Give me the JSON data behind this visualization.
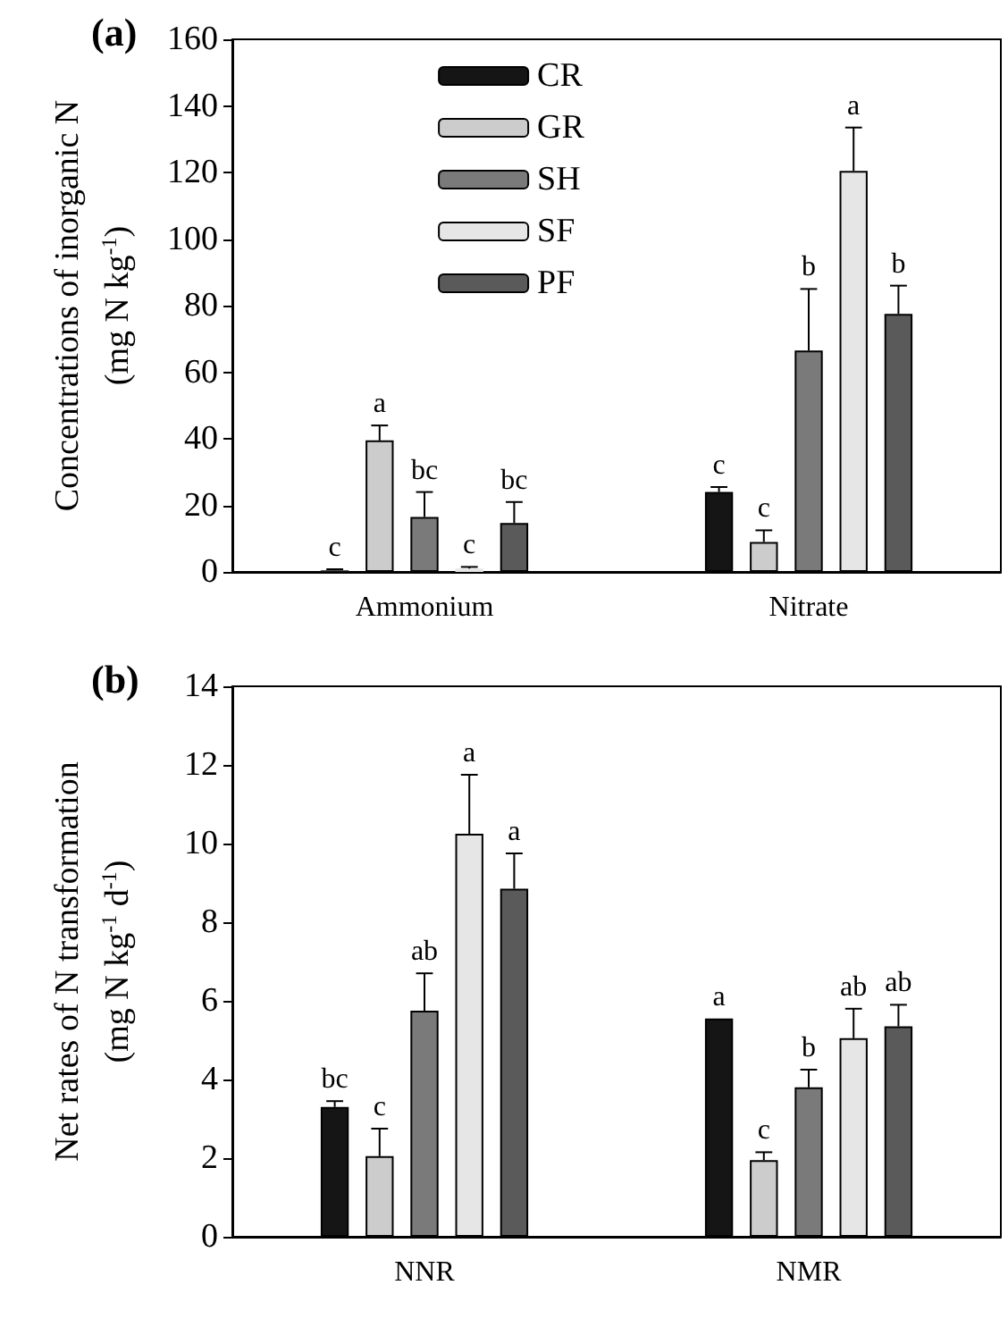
{
  "chart_data": [
    {
      "type": "bar",
      "title": "(a)",
      "ylabel": "Concentrations of inorganic N\n(mg N kg$^{-1}$)",
      "categories": [
        "Ammonium",
        "Nitrate"
      ],
      "ylim": [
        0,
        160
      ],
      "yticks": [
        0,
        20,
        40,
        60,
        80,
        100,
        120,
        140,
        160
      ],
      "grid": false,
      "legend": "top",
      "series": [
        {
          "name": "CR",
          "color": "#151515",
          "values": [
            0.5,
            24
          ],
          "errors": [
            [
              0.5,
              0.8
            ],
            [
              24,
              25.5
            ]
          ],
          "value_labels": [
            "c",
            "c"
          ]
        },
        {
          "name": "GR",
          "color": "#cccccc",
          "values": [
            39.5,
            9
          ],
          "errors": [
            [
              39.5,
              44
            ],
            [
              9,
              12.5
            ]
          ],
          "value_labels": [
            "a",
            "c"
          ]
        },
        {
          "name": "SH",
          "color": "#7a7a7a",
          "values": [
            16.5,
            66.5
          ],
          "errors": [
            [
              16.5,
              24
            ],
            [
              66.5,
              85
            ]
          ],
          "value_labels": [
            "bc",
            "b"
          ]
        },
        {
          "name": "SF",
          "color": "#e6e6e6",
          "values": [
            1,
            120.5
          ],
          "errors": [
            [
              1,
              1.5
            ],
            [
              120.5,
              133.5
            ]
          ],
          "value_labels": [
            "c",
            "a"
          ]
        },
        {
          "name": "PF",
          "color": "#5a5a5a",
          "values": [
            14.7,
            77.5
          ],
          "errors": [
            [
              14.7,
              21
            ],
            [
              77.5,
              86
            ]
          ],
          "value_labels": [
            "bc",
            "b"
          ]
        }
      ]
    },
    {
      "type": "bar",
      "title": "(b)",
      "ylabel": "Net rates of N transformation\n(mg N kg$^{-1}$ d$^{-1}$)",
      "categories": [
        "NNR",
        "NMR"
      ],
      "ylim": [
        0,
        14
      ],
      "yticks": [
        0,
        2,
        4,
        6,
        8,
        10,
        12,
        14
      ],
      "grid": false,
      "legend": false,
      "series": [
        {
          "color": "#151515",
          "values": [
            3.3,
            5.55
          ],
          "errors": [
            [
              3.3,
              3.45
            ],
            null
          ],
          "value_labels": [
            "bc",
            "a"
          ]
        },
        {
          "color": "#cccccc",
          "values": [
            2.05,
            1.95
          ],
          "errors": [
            [
              2.05,
              2.75
            ],
            [
              1.95,
              2.15
            ]
          ],
          "value_labels": [
            "c",
            "c"
          ]
        },
        {
          "color": "#7a7a7a",
          "values": [
            5.75,
            3.8
          ],
          "errors": [
            [
              5.75,
              6.7
            ],
            [
              3.8,
              4.25
            ]
          ],
          "value_labels": [
            "ab",
            "b"
          ]
        },
        {
          "color": "#e6e6e6",
          "values": [
            10.25,
            5.05
          ],
          "errors": [
            [
              10.25,
              11.75
            ],
            [
              5.05,
              5.8
            ]
          ],
          "value_labels": [
            "a",
            "ab"
          ]
        },
        {
          "color": "#5a5a5a",
          "values": [
            8.85,
            5.35
          ],
          "errors": [
            [
              8.85,
              9.75
            ],
            [
              5.35,
              5.9
            ]
          ],
          "value_labels": [
            "a",
            "ab"
          ]
        }
      ]
    }
  ]
}
